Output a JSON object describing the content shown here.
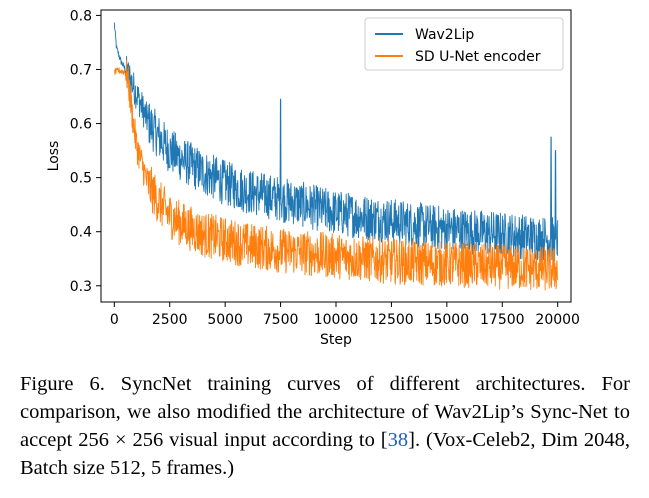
{
  "chart_data": {
    "type": "line",
    "xlabel": "Step",
    "ylabel": "Loss",
    "xlim": [
      -600,
      20600
    ],
    "ylim": [
      0.27,
      0.81
    ],
    "xticks": [
      0,
      2500,
      5000,
      7500,
      10000,
      12500,
      15000,
      17500,
      20000
    ],
    "yticks": [
      0.3,
      0.4,
      0.5,
      0.6,
      0.7,
      0.8
    ],
    "grid": false,
    "legend_position": "top-right",
    "series": [
      {
        "name": "Wav2Lip",
        "color": "#1f77b4",
        "x": [
          0,
          100,
          300,
          500,
          700,
          1000,
          1500,
          2000,
          2500,
          3000,
          4000,
          5000,
          6000,
          7500,
          8000,
          10000,
          12500,
          15000,
          17500,
          20000
        ],
        "y": [
          0.785,
          0.74,
          0.715,
          0.7,
          0.685,
          0.655,
          0.605,
          0.575,
          0.55,
          0.535,
          0.51,
          0.49,
          0.475,
          0.46,
          0.455,
          0.435,
          0.42,
          0.405,
          0.395,
          0.385
        ],
        "spikes": [
          {
            "x": 7500,
            "y": 0.645
          },
          {
            "x": 19700,
            "y": 0.575
          },
          {
            "x": 19900,
            "y": 0.55
          }
        ]
      },
      {
        "name": "SD U-Net encoder",
        "color": "#ff7f0e",
        "x": [
          0,
          200,
          500,
          600,
          800,
          1000,
          1500,
          2000,
          2500,
          3000,
          4000,
          5000,
          6000,
          7500,
          10000,
          12500,
          15000,
          17500,
          20000
        ],
        "y": [
          0.695,
          0.698,
          0.695,
          0.685,
          0.62,
          0.56,
          0.49,
          0.455,
          0.43,
          0.415,
          0.395,
          0.385,
          0.375,
          0.365,
          0.355,
          0.345,
          0.34,
          0.335,
          0.33
        ]
      }
    ]
  },
  "caption": {
    "part1": "Figure 6.  SyncNet training curves of different architectures.  For comparison, we also modified the architecture of Wav2Lip’s Sync-Net to accept 256 × 256 visual input according to [",
    "ref": "38",
    "part2": "].  (Vox-Celeb2, Dim 2048, Batch size 512, 5 frames.)"
  }
}
